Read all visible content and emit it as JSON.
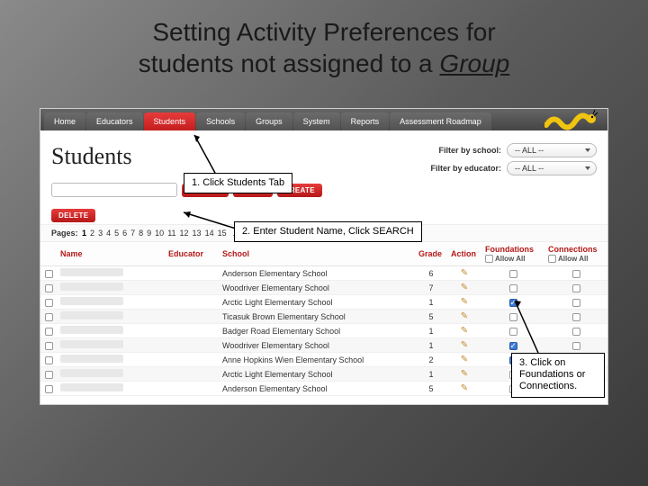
{
  "slide": {
    "title_a": "Setting Activity Preferences for",
    "title_b": "students not assigned to a ",
    "title_c": "Group"
  },
  "nav": {
    "tabs": [
      "Home",
      "Educators",
      "Students",
      "Schools",
      "Groups",
      "System",
      "Reports",
      "Assessment Roadmap"
    ],
    "active_index": 2
  },
  "page": {
    "title": "Students"
  },
  "filters": {
    "school_label": "Filter by school:",
    "educator_label": "Filter by educator:",
    "all_value": "-- ALL --"
  },
  "buttons": {
    "search": "SEARCH",
    "reset": "RESET",
    "create": "CREATE",
    "delete": "DELETE"
  },
  "pager": {
    "label": "Pages:",
    "pages": [
      "1",
      "2",
      "3",
      "4",
      "5",
      "6",
      "7",
      "8",
      "9",
      "10",
      "11",
      "12",
      "13",
      "14",
      "15"
    ],
    "more": "…",
    "next": ">>",
    "current": 0
  },
  "table": {
    "headers": {
      "name": "Name",
      "educator": "Educator",
      "school": "School",
      "grade": "Grade",
      "action": "Action",
      "foundations": "Foundations",
      "connections": "Connections",
      "allow": "Allow All"
    },
    "rows": [
      {
        "school": "Anderson Elementary School",
        "grade": "6",
        "f": false,
        "c": false
      },
      {
        "school": "Woodriver Elementary School",
        "grade": "7",
        "f": false,
        "c": false
      },
      {
        "school": "Arctic Light Elementary School",
        "grade": "1",
        "f": true,
        "c": false
      },
      {
        "school": "Ticasuk Brown Elementary School",
        "grade": "5",
        "f": false,
        "c": false
      },
      {
        "school": "Badger Road Elementary School",
        "grade": "1",
        "f": false,
        "c": false
      },
      {
        "school": "Woodriver Elementary School",
        "grade": "1",
        "f": true,
        "c": false
      },
      {
        "school": "Anne Hopkins Wien Elementary School",
        "grade": "2",
        "f": true,
        "c": false
      },
      {
        "school": "Arctic Light Elementary School",
        "grade": "1",
        "f": false,
        "c": false
      },
      {
        "school": "Anderson Elementary School",
        "grade": "5",
        "f": false,
        "c": false
      }
    ]
  },
  "callouts": {
    "c1": "1. Click Students Tab",
    "c2": "2. Enter Student Name, Click SEARCH",
    "c3": "3. Click on Foundations or Connections."
  },
  "colors": {
    "accent_red": "#c41e1e",
    "nav_bg": "#555555",
    "worm_body": "#f1c40f",
    "worm_head": "#d35400"
  }
}
